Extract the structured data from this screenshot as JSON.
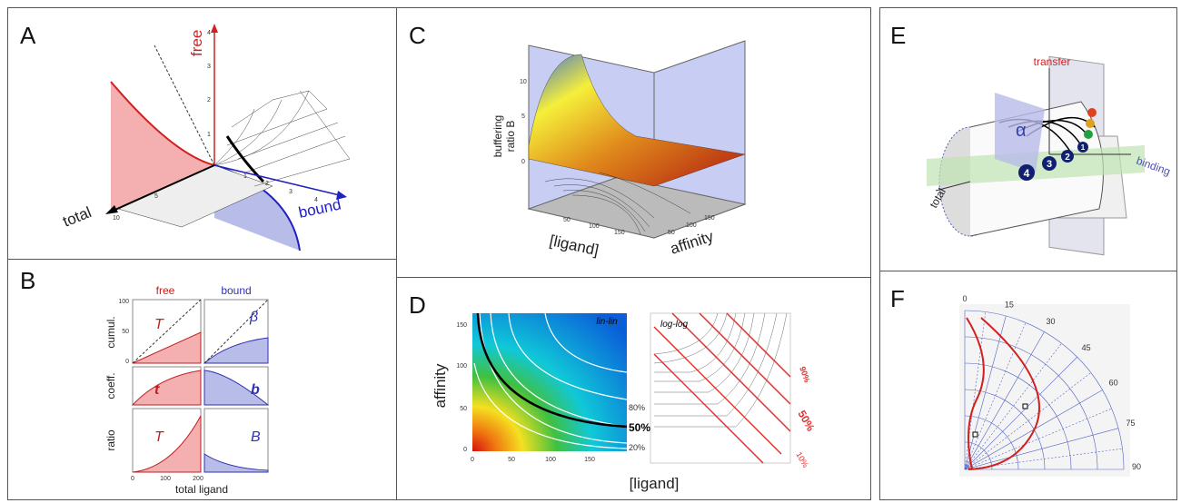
{
  "panels": {
    "A": {
      "label": "A",
      "free": "free",
      "total": "total",
      "bound": "bound",
      "free_ticks": [
        1,
        2,
        3,
        4
      ],
      "bound_ticks": [
        1,
        2,
        3,
        4
      ],
      "total_ticks": [
        5,
        10
      ]
    },
    "B": {
      "label": "B",
      "col_titles": [
        "free",
        "bound"
      ],
      "row_titles": [
        "cumul.",
        "coeff.",
        "ratio"
      ],
      "symbols": [
        "T",
        "β",
        "t",
        "b",
        "T",
        "B"
      ],
      "x_label": "total ligand",
      "x_ticks": [
        0,
        100,
        200
      ],
      "y_ticks": [
        0,
        50,
        100
      ]
    },
    "C": {
      "label": "C",
      "z_label": [
        "buffering",
        "ratio B"
      ],
      "x_label": "[ligand]",
      "y_label": "affinity",
      "z_ticks": [
        0,
        5,
        10
      ],
      "x_ticks": [
        50,
        100,
        150
      ],
      "y_ticks": [
        50,
        100,
        150
      ]
    },
    "D": {
      "label": "D",
      "y_label": "affinity",
      "x_label": "[ligand]",
      "left_title": "lin-lin",
      "right_title": "log-log",
      "left_contours": [
        "80%",
        "50%",
        "20%"
      ],
      "right_contours": [
        "90%",
        "50%",
        "10%"
      ],
      "y_ticks": [
        0,
        50,
        100,
        150
      ],
      "x_ticks": [
        0,
        50,
        100,
        150
      ]
    },
    "E": {
      "label": "E",
      "transfer": "transfer",
      "binding": "binding",
      "total": "total",
      "alpha": "α",
      "steps": [
        4,
        3,
        2,
        1
      ]
    },
    "F": {
      "label": "F",
      "angle_ticks": [
        0,
        15,
        30,
        45,
        60,
        75,
        90
      ]
    }
  }
}
